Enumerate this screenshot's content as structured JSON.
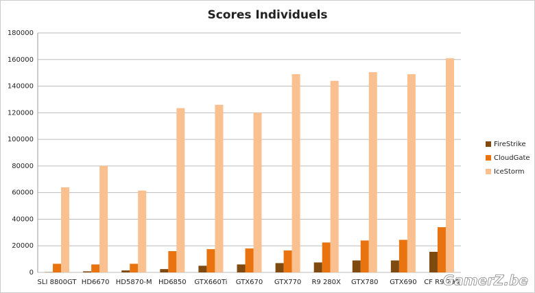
{
  "chart_data": {
    "type": "bar",
    "title": "Scores Individuels",
    "watermark": "GamerZ.be",
    "categories": [
      "SLI 8800GT",
      "HD6670",
      "HD5870-M",
      "HD6850",
      "GTX660Ti",
      "GTX670",
      "GTX770",
      "R9 280X",
      "GTX780",
      "GTX690",
      "CF R9 290"
    ],
    "series": [
      {
        "name": "FireStrike",
        "color": "#7f4a10",
        "values": [
          200,
          800,
          1500,
          2500,
          5000,
          6000,
          7000,
          7500,
          9000,
          9000,
          15500
        ]
      },
      {
        "name": "CloudGate",
        "color": "#e8730f",
        "values": [
          6500,
          6000,
          6500,
          16000,
          17500,
          18000,
          16500,
          22500,
          24000,
          24500,
          34000
        ]
      },
      {
        "name": "IceStorm",
        "color": "#fac090",
        "values": [
          64000,
          80000,
          61500,
          123500,
          126000,
          120000,
          149000,
          144000,
          150500,
          149000,
          161000
        ]
      }
    ],
    "ylim": [
      0,
      180000
    ],
    "yticks": [
      0,
      20000,
      40000,
      60000,
      80000,
      100000,
      120000,
      140000,
      160000,
      180000
    ],
    "grid": true,
    "legend": "right"
  }
}
